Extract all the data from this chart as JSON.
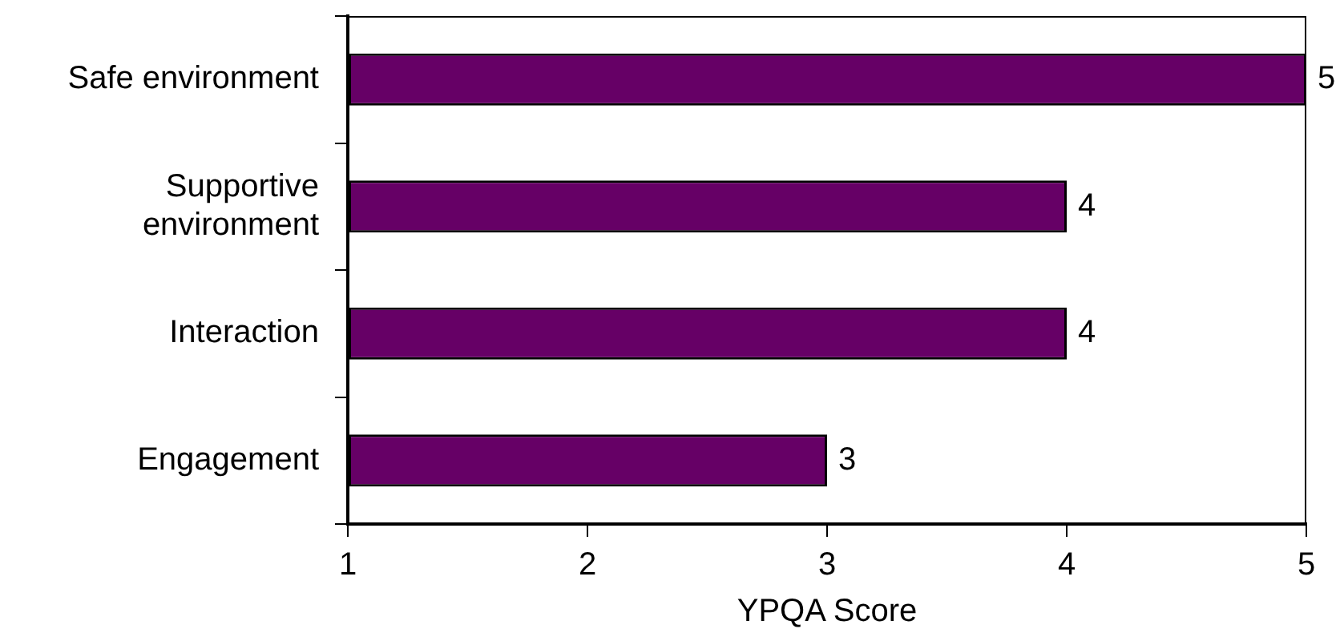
{
  "chart_data": {
    "type": "bar",
    "orientation": "horizontal",
    "categories": [
      "Safe environment",
      "Supportive environment",
      "Interaction",
      "Engagement"
    ],
    "values": [
      5,
      4,
      4,
      3
    ],
    "color": "#660066",
    "xlabel": "YPQA Score",
    "xlim": [
      1,
      5
    ],
    "xticks": [
      1,
      2,
      3,
      4,
      5
    ],
    "data_labels": true
  }
}
